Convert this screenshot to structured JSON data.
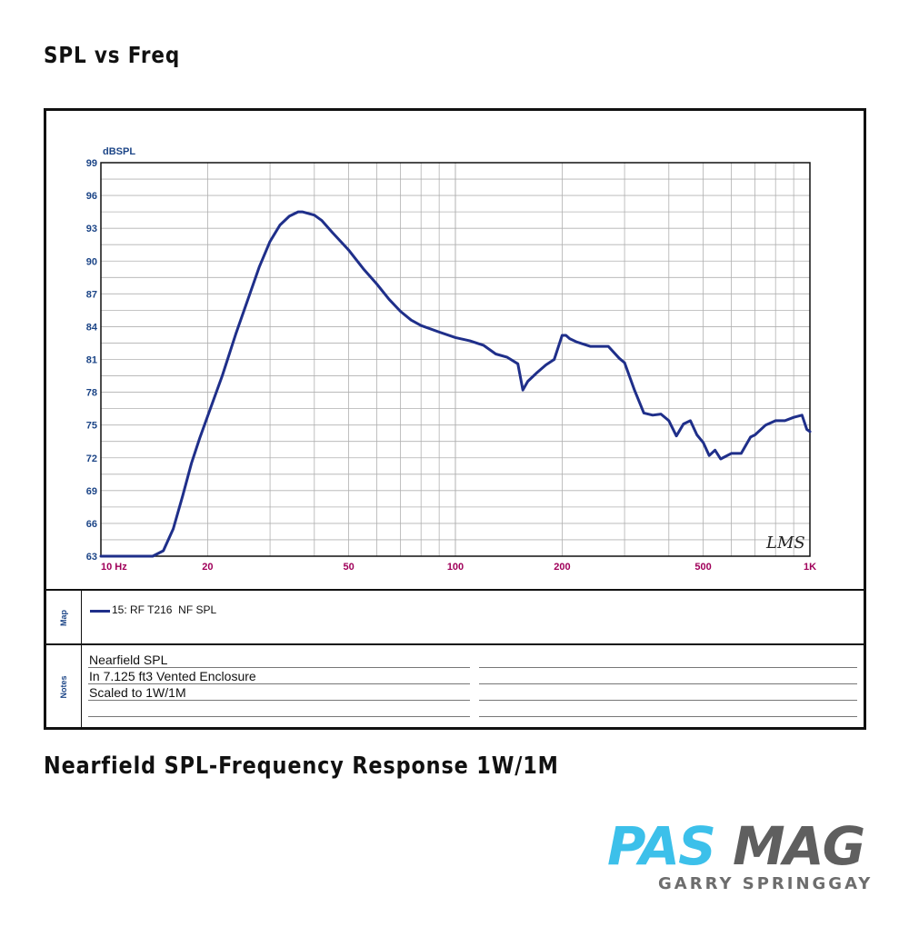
{
  "page": {
    "top_heading": "SPL vs Freq",
    "bottom_heading": "Nearfield SPL-Frequency Response 1W/1M"
  },
  "chart_data": {
    "type": "line",
    "ylabel": "dBSPL",
    "xscale": "log",
    "xlim": [
      10,
      1000
    ],
    "ylim": [
      63,
      99
    ],
    "xticks": [
      {
        "value": 10,
        "label": "10 Hz"
      },
      {
        "value": 20,
        "label": "20"
      },
      {
        "value": 50,
        "label": "50"
      },
      {
        "value": 100,
        "label": "100"
      },
      {
        "value": 200,
        "label": "200"
      },
      {
        "value": 500,
        "label": "500"
      },
      {
        "value": 1000,
        "label": "1K"
      }
    ],
    "yticks": [
      "99",
      "96",
      "93",
      "90",
      "87",
      "84",
      "81",
      "78",
      "75",
      "72",
      "69",
      "66",
      "63"
    ],
    "grid": true,
    "watermark": "LMS",
    "colors": {
      "series": "#1f2f8a",
      "y_ticks": "#1c4587",
      "x_ticks": "#a0005a",
      "grid": "#b0b0b0"
    },
    "series": [
      {
        "name": "15: RF T216 NF SPL",
        "x": [
          10,
          12,
          14,
          15,
          16,
          17,
          18,
          19,
          20,
          22,
          24,
          26,
          28,
          30,
          32,
          34,
          36,
          37,
          38,
          40,
          42,
          45,
          50,
          55,
          60,
          65,
          70,
          75,
          80,
          90,
          100,
          110,
          120,
          130,
          140,
          150,
          155,
          160,
          170,
          180,
          190,
          200,
          205,
          210,
          220,
          240,
          260,
          270,
          290,
          300,
          320,
          340,
          360,
          380,
          400,
          420,
          440,
          460,
          480,
          500,
          520,
          540,
          560,
          600,
          640,
          680,
          700,
          750,
          800,
          850,
          900,
          950,
          980,
          1000
        ],
        "y": [
          63,
          63,
          63,
          63.5,
          65.5,
          68.5,
          71.5,
          73.8,
          75.8,
          79.5,
          83.3,
          86.5,
          89.5,
          91.8,
          93.3,
          94.1,
          94.5,
          94.5,
          94.4,
          94.2,
          93.7,
          92.6,
          91.0,
          89.3,
          87.9,
          86.5,
          85.4,
          84.6,
          84.1,
          83.5,
          83.0,
          82.7,
          82.3,
          81.5,
          81.2,
          80.6,
          78.2,
          79.0,
          79.8,
          80.5,
          81.0,
          83.2,
          83.2,
          82.9,
          82.6,
          82.2,
          82.2,
          82.2,
          81.1,
          80.7,
          78.2,
          76.1,
          75.9,
          76.0,
          75.4,
          74.0,
          75.1,
          75.4,
          74.1,
          73.4,
          72.2,
          72.7,
          71.9,
          72.4,
          72.4,
          73.9,
          74.1,
          75.0,
          75.4,
          75.4,
          75.7,
          75.9,
          74.6,
          74.4
        ]
      }
    ]
  },
  "map": {
    "tag": "Map",
    "legend": "15: RF T216  NF SPL"
  },
  "notes": {
    "tag": "Notes",
    "lines": [
      "Nearfield SPL",
      "In 7.125 ft3 Vented Enclosure",
      "Scaled to 1W/1M"
    ]
  },
  "logo": {
    "brand_left": "PAS",
    "brand_right": "MAG",
    "byline": "GARRY SPRINGGAY"
  }
}
